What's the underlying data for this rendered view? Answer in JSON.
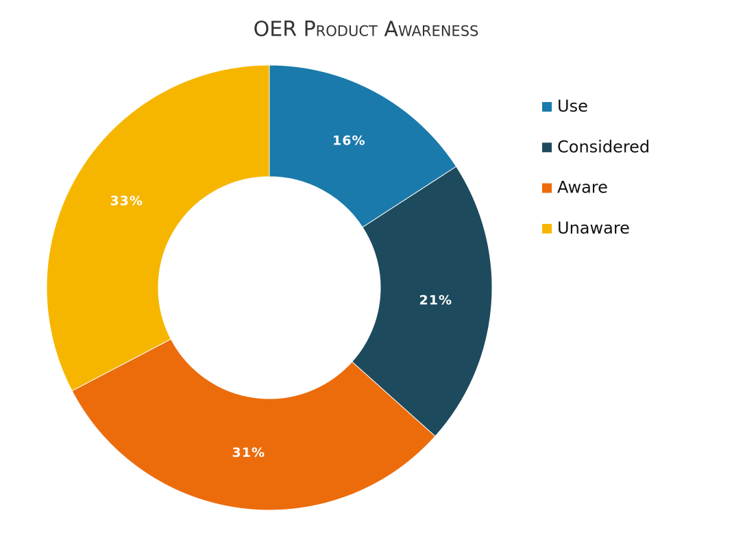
{
  "chart_data": {
    "type": "donut",
    "title": "OER Product Awareness",
    "categories": [
      "Use",
      "Considered",
      "Aware",
      "Unaware"
    ],
    "values": [
      16,
      21,
      31,
      33
    ],
    "value_labels": [
      "16%",
      "21%",
      "31%",
      "33%"
    ],
    "colors": [
      "#1a7aab",
      "#1e4a5e",
      "#ec6c0c",
      "#f6b600"
    ],
    "legend": "right"
  }
}
